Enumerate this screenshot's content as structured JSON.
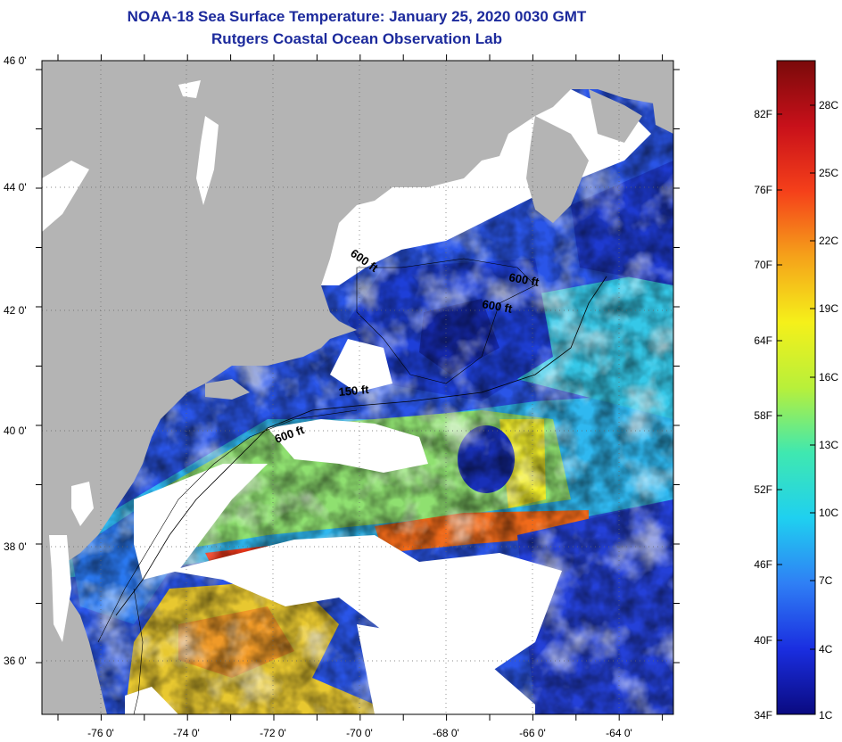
{
  "title": "NOAA-18 Sea Surface Temperature:  January 25, 2020 0030 GMT",
  "subtitle": "Rutgers Coastal Ocean Observation Lab",
  "map": {
    "lat_labels": [
      "46 0'",
      "44 0'",
      "42 0'",
      "40 0'",
      "38 0'",
      "36 0'"
    ],
    "lon_labels": [
      "-76 0'",
      "-74 0'",
      "-72 0'",
      "-70 0'",
      "-68 0'",
      "-66 0'",
      "-64 0'"
    ],
    "contour_labels": [
      "600 ft",
      "600 ft",
      "600 ft",
      "150 ft",
      "600 ft"
    ],
    "colors": {
      "land": "#b4b4b4",
      "cloud": "#ffffff",
      "frame": "#000000"
    }
  },
  "colorbar": {
    "f_labels": [
      "82F",
      "76F",
      "70F",
      "64F",
      "58F",
      "52F",
      "46F",
      "40F",
      "34F"
    ],
    "c_labels": [
      "28C",
      "25C",
      "22C",
      "19C",
      "16C",
      "13C",
      "10C",
      "7C",
      "4C",
      "1C"
    ],
    "gradient": [
      "#0a0a80",
      "#1a2ee0",
      "#2f7ff5",
      "#1fd0f0",
      "#3fe8b0",
      "#b8f03a",
      "#f5f01a",
      "#f5a21a",
      "#f5401a",
      "#c8101a",
      "#7a0a0a"
    ]
  }
}
